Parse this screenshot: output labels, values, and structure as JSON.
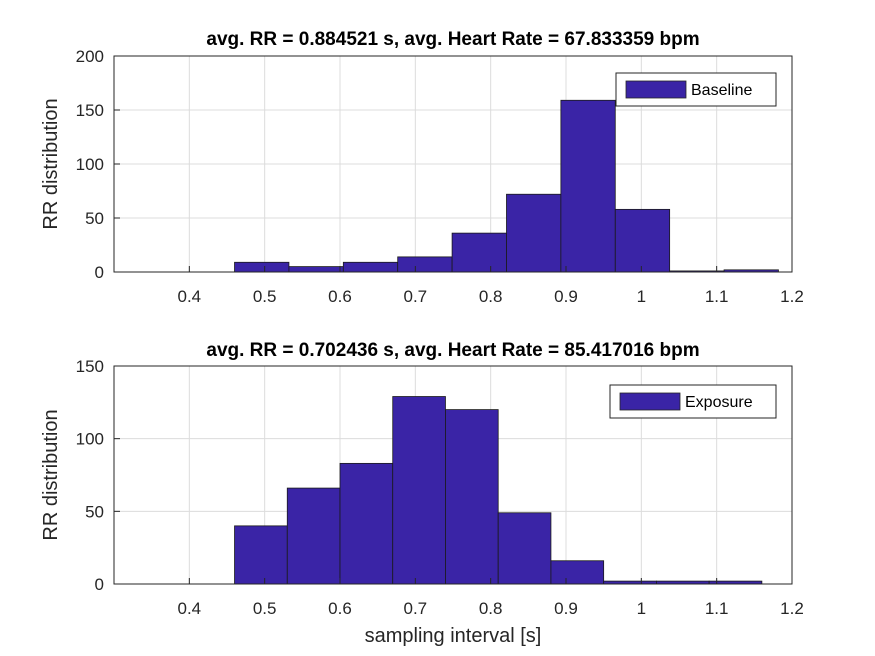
{
  "chart_data": [
    {
      "type": "bar",
      "subtype": "histogram",
      "title": "avg. RR = 0.884521 s, avg. Heart Rate = 67.833359 bpm",
      "xlabel": "",
      "ylabel": "RR distribution",
      "xlim": [
        0.3,
        1.2
      ],
      "ylim": [
        0,
        200
      ],
      "xticks": [
        "0.4",
        "0.5",
        "0.6",
        "0.7",
        "0.8",
        "0.9",
        "1",
        "1.1",
        "1.2"
      ],
      "yticks": [
        "0",
        "50",
        "100",
        "150",
        "200"
      ],
      "grid": true,
      "legend": {
        "placement": "top-right",
        "entries": [
          "Baseline"
        ]
      },
      "bar_color": "#3a24a6",
      "bin_edges": [
        0.46,
        0.5322,
        0.6044,
        0.6766,
        0.7488,
        0.821,
        0.8932,
        0.9654,
        1.0376,
        1.1098,
        1.182
      ],
      "values": [
        9,
        5,
        9,
        14,
        36,
        72,
        159,
        58,
        1,
        2
      ]
    },
    {
      "type": "bar",
      "subtype": "histogram",
      "title": "avg. RR = 0.702436 s, avg. Heart Rate = 85.417016 bpm",
      "xlabel": "sampling interval [s]",
      "ylabel": "RR distribution",
      "xlim": [
        0.3,
        1.2
      ],
      "ylim": [
        0,
        150
      ],
      "xticks": [
        "0.4",
        "0.5",
        "0.6",
        "0.7",
        "0.8",
        "0.9",
        "1",
        "1.1",
        "1.2"
      ],
      "yticks": [
        "0",
        "50",
        "100",
        "150"
      ],
      "grid": true,
      "legend": {
        "placement": "top-right",
        "entries": [
          "Exposure"
        ]
      },
      "bar_color": "#3a24a6",
      "bin_edges": [
        0.46,
        0.53,
        0.6,
        0.67,
        0.74,
        0.81,
        0.88,
        0.95,
        1.02,
        1.09,
        1.16
      ],
      "values": [
        40,
        66,
        83,
        129,
        120,
        49,
        16,
        2,
        2,
        2
      ]
    }
  ]
}
